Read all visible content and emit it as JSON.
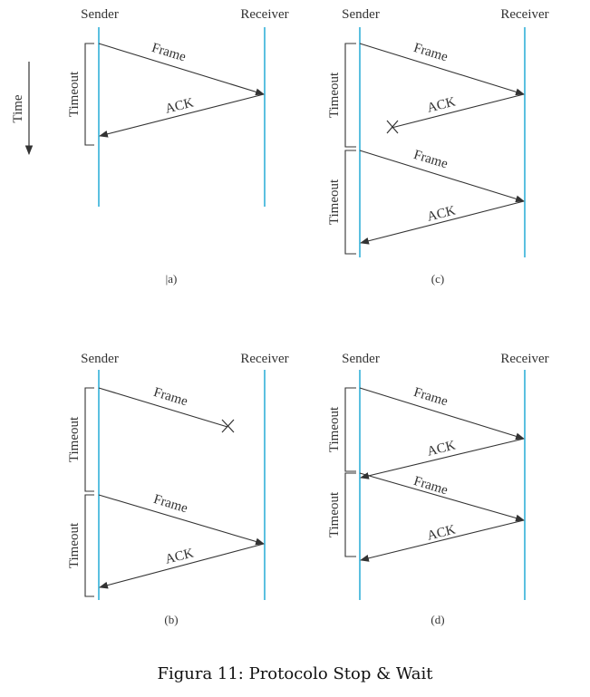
{
  "labels": {
    "sender": "Sender",
    "receiver": "Receiver",
    "frame": "Frame",
    "ack": "ACK",
    "timeout": "Timeout",
    "time": "Time"
  },
  "panels": {
    "a": "|a)",
    "b": "(b)",
    "c": "(c)",
    "d": "(d)"
  },
  "caption": "Figura 11: Protocolo Stop & Wait",
  "colors": {
    "timeline": "#5bc0e0",
    "ink": "#333333"
  }
}
